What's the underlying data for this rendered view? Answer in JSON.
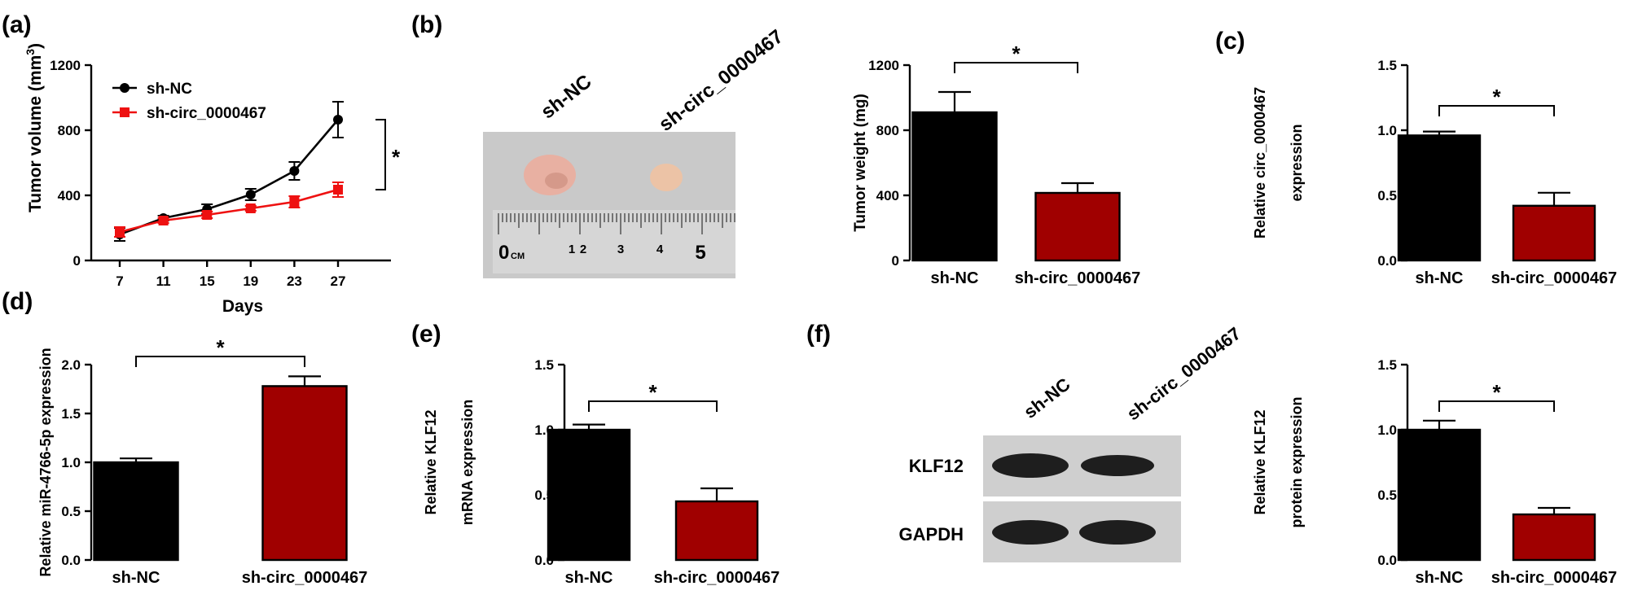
{
  "colors": {
    "control": "#000000",
    "treatment": "#a00000",
    "line_treatment": "#ee1111",
    "photo_background": "#c9c9c9",
    "ruler": "#d6d6d6",
    "blot_background": "#cfcfcf",
    "blot_band": "#1e1e1e",
    "tumor_large": "#e8b0a2",
    "tumor_small": "#ecc3a6"
  },
  "panels": {
    "a": "(a)",
    "b": "(b)",
    "c": "(c)",
    "d": "(d)",
    "e": "(e)",
    "f": "(f)"
  },
  "significance": "*",
  "photo": {
    "group_labels": [
      "sh-NC",
      "sh-circ_0000467"
    ],
    "ruler_numbers": [
      "0",
      "1",
      "2",
      "3",
      "4",
      "5"
    ],
    "ruler_unit": "CM"
  },
  "blot": {
    "lane_labels": [
      "sh-NC",
      "sh-circ_0000467"
    ],
    "rows": [
      "KLF12",
      "GAPDH"
    ]
  },
  "chart_data": [
    {
      "id": "a",
      "type": "line",
      "xlabel": "Days",
      "ylabel": "Tumor volume (mm3)",
      "ylabel_main": "Tumor volume (mm",
      "ylabel_sup": "3",
      "ylabel_close": ")",
      "x": [
        7,
        11,
        15,
        19,
        23,
        27
      ],
      "xticks": [
        "7",
        "11",
        "15",
        "19",
        "23",
        "27"
      ],
      "ylim": [
        0,
        1200
      ],
      "yticks": [
        "0",
        "400",
        "800",
        "1200"
      ],
      "legend_position": "top-left",
      "series": [
        {
          "name": "sh-NC",
          "values": [
            160,
            260,
            315,
            405,
            550,
            865
          ],
          "errors": [
            40,
            15,
            30,
            35,
            55,
            110
          ],
          "marker": "circle"
        },
        {
          "name": "sh-circ_0000467",
          "values": [
            175,
            245,
            280,
            320,
            360,
            435
          ],
          "errors": [
            30,
            15,
            20,
            15,
            35,
            45
          ],
          "marker": "square"
        }
      ]
    },
    {
      "id": "b",
      "type": "bar",
      "ylabel": "Tumor weight (mg)",
      "categories": [
        "sh-NC",
        "sh-circ_0000467"
      ],
      "values": [
        910,
        415
      ],
      "errors": [
        125,
        60
      ],
      "ylim": [
        0,
        1200
      ],
      "yticks": [
        "0",
        "400",
        "800",
        "1200"
      ]
    },
    {
      "id": "c",
      "type": "bar",
      "ylabel_lines": [
        "Relative circ_0000467",
        "expression"
      ],
      "categories": [
        "sh-NC",
        "sh-circ_0000467"
      ],
      "values": [
        0.96,
        0.42
      ],
      "errors": [
        0.03,
        0.1
      ],
      "ylim": [
        0,
        1.5
      ],
      "yticks": [
        "0.0",
        "0.5",
        "1.0",
        "1.5"
      ]
    },
    {
      "id": "d",
      "type": "bar",
      "ylabel_lines": [
        "Relative miR-4766-5p expression"
      ],
      "categories": [
        "sh-NC",
        "sh-circ_0000467"
      ],
      "values": [
        1.0,
        1.78
      ],
      "errors": [
        0.04,
        0.1
      ],
      "ylim": [
        0,
        2.0
      ],
      "yticks": [
        "0.0",
        "0.5",
        "1.0",
        "1.5",
        "2.0"
      ]
    },
    {
      "id": "e",
      "type": "bar",
      "ylabel_lines": [
        "Relative KLF12",
        "mRNA expression"
      ],
      "categories": [
        "sh-NC",
        "sh-circ_0000467"
      ],
      "values": [
        1.0,
        0.45
      ],
      "errors": [
        0.04,
        0.1
      ],
      "ylim": [
        0,
        1.5
      ],
      "yticks": [
        "0.0",
        "0.5",
        "1.0",
        "1.5"
      ]
    },
    {
      "id": "f",
      "type": "bar",
      "ylabel_lines": [
        "Relative KLF12",
        "protein expression"
      ],
      "categories": [
        "sh-NC",
        "sh-circ_0000467"
      ],
      "values": [
        1.0,
        0.35
      ],
      "errors": [
        0.07,
        0.05
      ],
      "ylim": [
        0,
        1.5
      ],
      "yticks": [
        "0.0",
        "0.5",
        "1.0",
        "1.5"
      ]
    }
  ]
}
